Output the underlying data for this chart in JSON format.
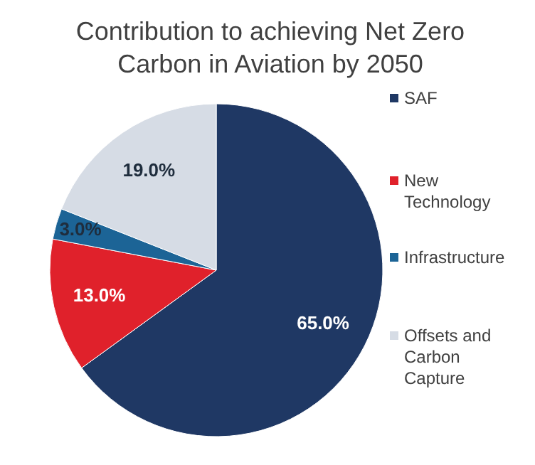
{
  "chart_data": {
    "type": "pie",
    "title": "Contribution to achieving Net Zero Carbon in Aviation by 2050",
    "categories": [
      "SAF",
      "New Technology",
      "Infrastructure",
      "Offsets and Carbon Capture"
    ],
    "values": [
      65,
      13,
      3,
      19
    ],
    "colors": [
      "#1f3864",
      "#e0212b",
      "#1c6496",
      "#d6dce5"
    ],
    "value_labels": [
      "65.0%",
      "13.0%",
      "3.0%",
      "19.0%"
    ],
    "legend": "right"
  }
}
